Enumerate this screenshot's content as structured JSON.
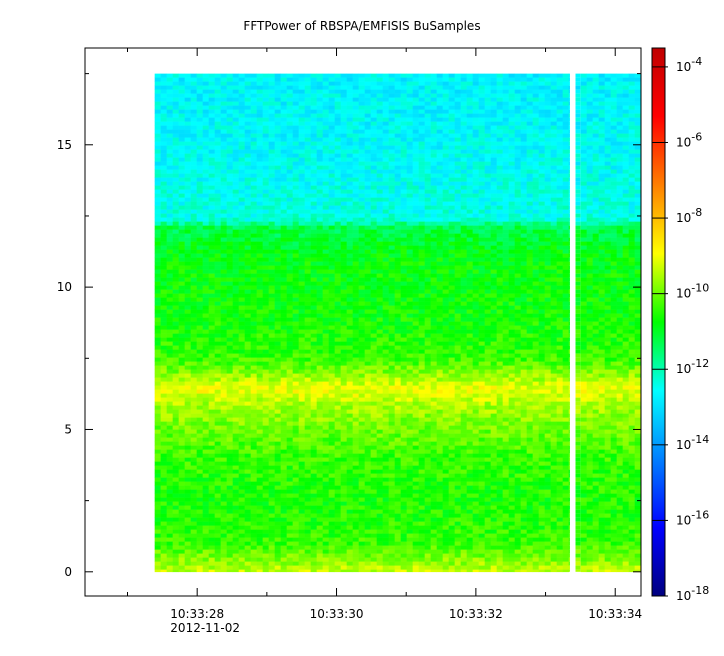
{
  "chart_data": {
    "type": "heatmap",
    "title": "FFTPower of RBSPA/EMFISIS  BuSamples",
    "xlabel": "",
    "ylabel": "",
    "x_axis": {
      "unit": "time",
      "range_seconds": [
        -1.61,
        6.37
      ],
      "ticks": [
        {
          "t": 0,
          "label": "10:33:28",
          "sub": "2012-11-02"
        },
        {
          "t": 2,
          "label": "10:33:30",
          "sub": ""
        },
        {
          "t": 4,
          "label": "10:33:32",
          "sub": ""
        },
        {
          "t": 6,
          "label": "10:33:34",
          "sub": ""
        }
      ],
      "minor_ticks": [
        -1,
        1,
        3,
        5
      ]
    },
    "y_axis": {
      "range": [
        -0.85,
        18.4
      ],
      "ticks": [
        0,
        5,
        10,
        15
      ],
      "minor_ticks": [
        2.5,
        7.5,
        12.5,
        17.5
      ]
    },
    "data_extent": {
      "t_start": -0.61,
      "t_end": 6.37,
      "y_min": 0,
      "y_max": 17.5,
      "gap_t": [
        5.35,
        5.43
      ]
    },
    "spectrum_profile": [
      {
        "y": 0.0,
        "log_power": -9.3
      },
      {
        "y": 0.3,
        "log_power": -9.7
      },
      {
        "y": 1.0,
        "log_power": -10.4
      },
      {
        "y": 2.5,
        "log_power": -10.6
      },
      {
        "y": 4.0,
        "log_power": -10.4
      },
      {
        "y": 5.2,
        "log_power": -9.9
      },
      {
        "y": 5.9,
        "log_power": -9.5
      },
      {
        "y": 6.4,
        "log_power": -9.0
      },
      {
        "y": 6.9,
        "log_power": -9.7
      },
      {
        "y": 7.5,
        "log_power": -10.4
      },
      {
        "y": 9.0,
        "log_power": -10.7
      },
      {
        "y": 11.0,
        "log_power": -10.8
      },
      {
        "y": 12.1,
        "log_power": -11.3
      },
      {
        "y": 12.4,
        "log_power": -12.4
      },
      {
        "y": 15.0,
        "log_power": -12.6
      },
      {
        "y": 17.5,
        "log_power": -12.7
      }
    ],
    "colorbar": {
      "scale": "log",
      "range_exponent": [
        -18,
        -3.5
      ],
      "ticks": [
        {
          "exp": -4,
          "base": "10",
          "label": "-4"
        },
        {
          "exp": -6,
          "base": "10",
          "label": "-6"
        },
        {
          "exp": -8,
          "base": "10",
          "label": "-8"
        },
        {
          "exp": -10,
          "base": "10",
          "label": "-10"
        },
        {
          "exp": -12,
          "base": "10",
          "label": "-12"
        },
        {
          "exp": -14,
          "base": "10",
          "label": "-14"
        },
        {
          "exp": -16,
          "base": "10",
          "label": "-16"
        },
        {
          "exp": -18,
          "base": "10",
          "label": "-18"
        }
      ],
      "colormap": [
        "#00007f",
        "#0000ff",
        "#007fff",
        "#00ffff",
        "#00ff00",
        "#ffff00",
        "#ff7f00",
        "#ff0000",
        "#bf0000"
      ]
    }
  }
}
